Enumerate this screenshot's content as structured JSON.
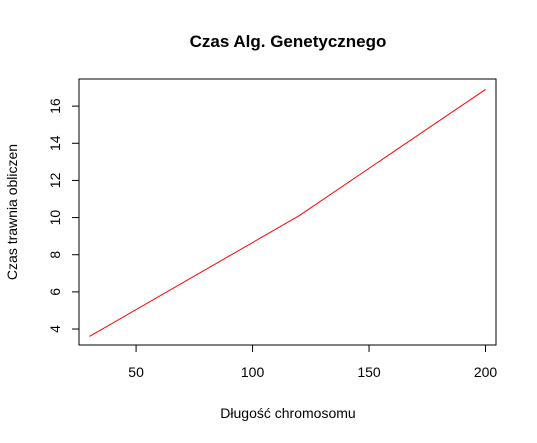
{
  "chart_data": {
    "type": "line",
    "title": "Czas Alg. Genetycznego",
    "xlabel": "Długość chromosomu",
    "ylabel": "Czas trawnia obliczen",
    "xlim": [
      25.5,
      204.5
    ],
    "ylim": [
      3.14,
      17.46
    ],
    "x_ticks": [
      50,
      100,
      150,
      200
    ],
    "y_ticks": [
      4,
      6,
      8,
      10,
      12,
      14,
      16
    ],
    "grid": false,
    "series": [
      {
        "color": "#ff0000",
        "x": [
          30,
          120,
          200
        ],
        "y": [
          3.6,
          10.1,
          16.9
        ]
      }
    ]
  }
}
